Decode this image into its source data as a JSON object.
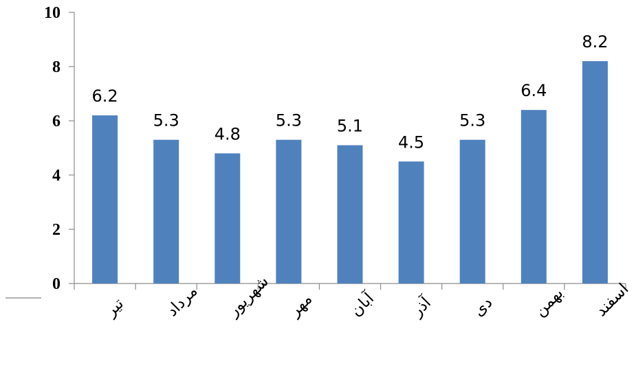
{
  "chart_data": {
    "type": "bar",
    "categories": [
      "تیر",
      "مرداد",
      "شهریور",
      "مهر",
      "آبان",
      "آذر",
      "دی",
      "بهمن",
      "اسفند"
    ],
    "values": [
      6.2,
      5.3,
      4.8,
      5.3,
      5.1,
      4.5,
      5.3,
      6.4,
      8.2
    ],
    "data_labels": [
      "6.2",
      "5.3",
      "4.8",
      "5.3",
      "5.1",
      "4.5",
      "5.3",
      "6.4",
      "8.2"
    ],
    "yticks": [
      "0",
      "2",
      "4",
      "6",
      "8",
      "10"
    ],
    "ylim": [
      0,
      10
    ],
    "title": "",
    "xlabel": "",
    "ylabel": "",
    "grid": false,
    "legend": "none",
    "bar_color": "#4f81bd"
  }
}
